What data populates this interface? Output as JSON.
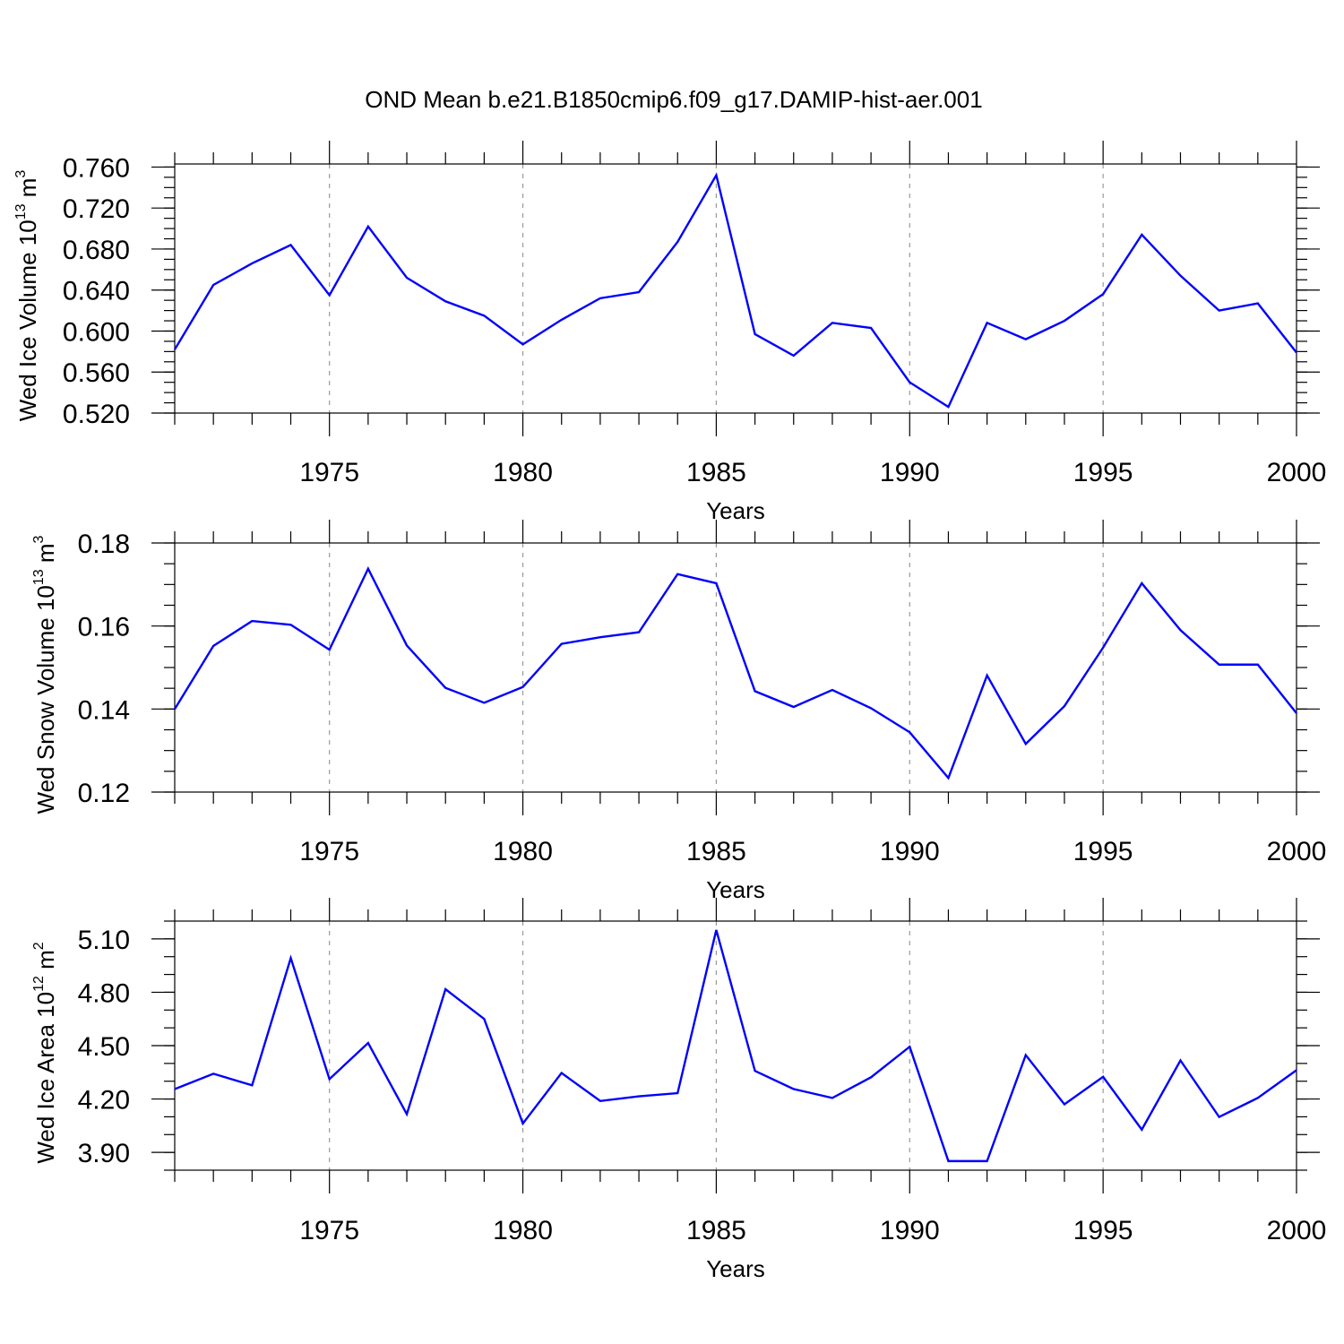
{
  "figure": {
    "title": "OND Mean b.e21.B1850cmip6.f09_g17.DAMIP-hist-aer.001"
  },
  "colors": {
    "line": "#0000ff",
    "axis": "#000000",
    "grid": "#999999",
    "background": "#ffffff"
  },
  "chart_data": [
    {
      "type": "line",
      "title": "OND Mean b.e21.B1850cmip6.f09_g17.DAMIP-hist-aer.001",
      "xlabel": "Years",
      "ylabel_main": "Wed Ice Volume 10",
      "ylabel_exp": "13",
      "ylabel_unit": " m",
      "ylabel_unit_exp": "3",
      "xlim": [
        1971,
        2000
      ],
      "ylim": [
        0.52,
        0.763
      ],
      "xticks": [
        1975,
        1980,
        1985,
        1990,
        1995,
        2000
      ],
      "yticks": [
        0.52,
        0.56,
        0.6,
        0.64,
        0.68,
        0.72,
        0.76
      ],
      "ytick_labels": [
        "0.520",
        "0.560",
        "0.600",
        "0.640",
        "0.680",
        "0.720",
        "0.760"
      ],
      "grid": "vertical dashed at major x ticks",
      "series": [
        {
          "name": "Wed Ice Volume",
          "x": [
            1971,
            1972,
            1973,
            1974,
            1975,
            1976,
            1977,
            1978,
            1979,
            1980,
            1981,
            1982,
            1983,
            1984,
            1985,
            1986,
            1987,
            1988,
            1989,
            1990,
            1991,
            1992,
            1993,
            1994,
            1995,
            1996,
            1997,
            1998,
            1999,
            2000
          ],
          "values": [
            0.582,
            0.645,
            0.666,
            0.684,
            0.635,
            0.702,
            0.652,
            0.629,
            0.615,
            0.587,
            0.611,
            0.632,
            0.638,
            0.687,
            0.752,
            0.597,
            0.576,
            0.608,
            0.603,
            0.55,
            0.526,
            0.608,
            0.592,
            0.61,
            0.636,
            0.694,
            0.654,
            0.62,
            0.627,
            0.579
          ]
        }
      ]
    },
    {
      "type": "line",
      "xlabel": "Years",
      "ylabel_main": "Wed Snow Volume 10",
      "ylabel_exp": "13",
      "ylabel_unit": " m",
      "ylabel_unit_exp": "3",
      "xlim": [
        1971,
        2000
      ],
      "ylim": [
        0.12,
        0.18
      ],
      "xticks": [
        1975,
        1980,
        1985,
        1990,
        1995,
        2000
      ],
      "yticks": [
        0.12,
        0.14,
        0.16,
        0.18
      ],
      "ytick_labels": [
        "0.12",
        "0.14",
        "0.16",
        "0.18"
      ],
      "grid": "vertical dashed at major x ticks",
      "series": [
        {
          "name": "Wed Snow Volume",
          "x": [
            1971,
            1972,
            1973,
            1974,
            1975,
            1976,
            1977,
            1978,
            1979,
            1980,
            1981,
            1982,
            1983,
            1984,
            1985,
            1986,
            1987,
            1988,
            1989,
            1990,
            1991,
            1992,
            1993,
            1994,
            1995,
            1996,
            1997,
            1998,
            1999,
            2000
          ],
          "values": [
            0.14,
            0.1552,
            0.1612,
            0.1603,
            0.1543,
            0.1738,
            0.1553,
            0.1451,
            0.1415,
            0.1453,
            0.1557,
            0.1573,
            0.1585,
            0.1725,
            0.1703,
            0.1443,
            0.1405,
            0.1446,
            0.1402,
            0.1344,
            0.1234,
            0.1481,
            0.1316,
            0.1407,
            0.1548,
            0.1703,
            0.159,
            0.1507,
            0.1507,
            0.139
          ]
        }
      ]
    },
    {
      "type": "line",
      "xlabel": "Years",
      "ylabel_main": "Wed Ice Area 10",
      "ylabel_exp": "12",
      "ylabel_unit": " m",
      "ylabel_unit_exp": "2",
      "xlim": [
        1971,
        2000
      ],
      "ylim": [
        3.8,
        5.2
      ],
      "xticks": [
        1975,
        1980,
        1985,
        1990,
        1995,
        2000
      ],
      "yticks": [
        3.9,
        4.2,
        4.5,
        4.8,
        5.1
      ],
      "ytick_labels": [
        "3.90",
        "4.20",
        "4.50",
        "4.80",
        "5.10"
      ],
      "grid": "vertical dashed at major x ticks",
      "series": [
        {
          "name": "Wed Ice Area",
          "x": [
            1971,
            1972,
            1973,
            1974,
            1975,
            1976,
            1977,
            1978,
            1979,
            1980,
            1981,
            1982,
            1983,
            1984,
            1985,
            1986,
            1987,
            1988,
            1989,
            1990,
            1991,
            1992,
            1993,
            1994,
            1995,
            1996,
            1997,
            1998,
            1999,
            2000
          ],
          "values": [
            4.256,
            4.342,
            4.277,
            4.992,
            4.312,
            4.515,
            4.115,
            4.817,
            4.65,
            4.062,
            4.346,
            4.189,
            4.215,
            4.233,
            5.15,
            4.358,
            4.256,
            4.206,
            4.322,
            4.494,
            3.851,
            3.851,
            4.447,
            4.17,
            4.325,
            4.028,
            4.417,
            4.099,
            4.206,
            4.362
          ]
        }
      ]
    }
  ]
}
